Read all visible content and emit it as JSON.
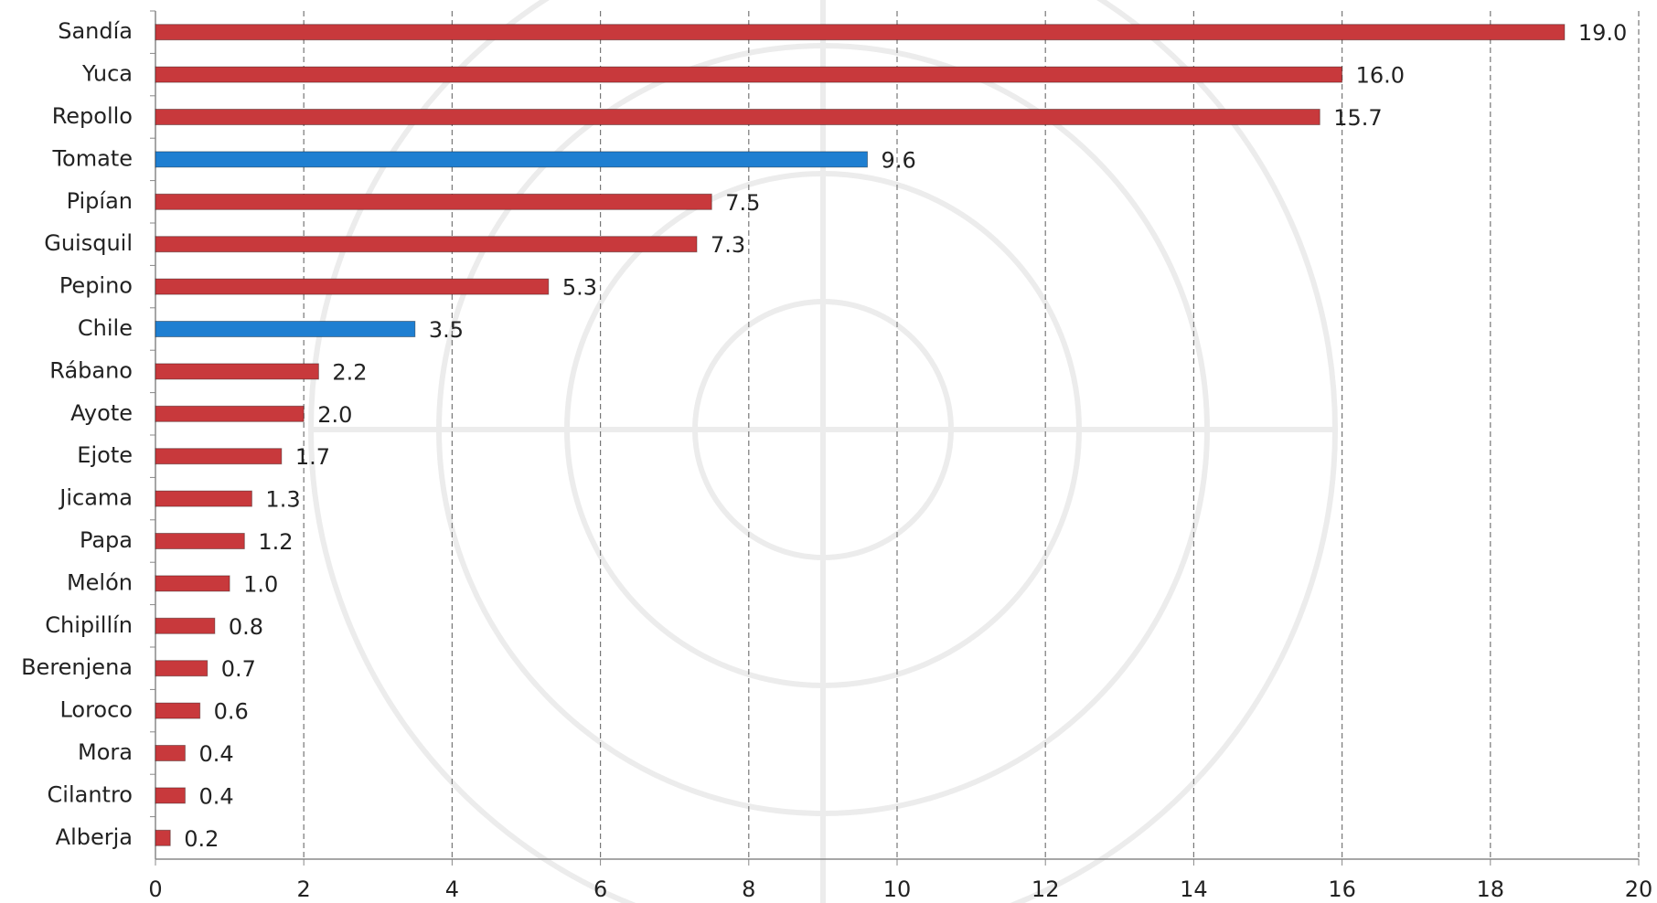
{
  "chart_data": {
    "type": "barh",
    "categories": [
      "Sandía",
      "Yuca",
      "Repollo",
      "Tomate",
      "Pipían",
      "Guisquil",
      "Pepino",
      "Chile",
      "Rábano",
      "Ayote",
      "Ejote",
      "Jicama",
      "Papa",
      "Melón",
      "Chipillín",
      "Berenjena",
      "Loroco",
      "Mora",
      "Cilantro",
      "Alberja"
    ],
    "values": [
      19.0,
      16.0,
      15.7,
      9.6,
      7.5,
      7.3,
      5.3,
      3.5,
      2.2,
      2.0,
      1.7,
      1.3,
      1.2,
      1.0,
      0.8,
      0.7,
      0.6,
      0.4,
      0.4,
      0.2
    ],
    "value_labels": [
      "19.0",
      "16.0",
      "15.7",
      "9.6",
      "7.5",
      "7.3",
      "5.3",
      "3.5",
      "2.2",
      "2.0",
      "1.7",
      "1.3",
      "1.2",
      "1.0",
      "0.8",
      "0.7",
      "0.6",
      "0.4",
      "0.4",
      "0.2"
    ],
    "colors": [
      "#c8393c",
      "#c8393c",
      "#c8393c",
      "#1f7fd1",
      "#c8393c",
      "#c8393c",
      "#c8393c",
      "#1f7fd1",
      "#c8393c",
      "#c8393c",
      "#c8393c",
      "#c8393c",
      "#c8393c",
      "#c8393c",
      "#c8393c",
      "#c8393c",
      "#c8393c",
      "#c8393c",
      "#c8393c",
      "#c8393c"
    ],
    "xlim": [
      0,
      20
    ],
    "xticks": [
      0,
      2,
      4,
      6,
      8,
      10,
      12,
      14,
      16,
      18,
      20
    ],
    "grid": true
  }
}
